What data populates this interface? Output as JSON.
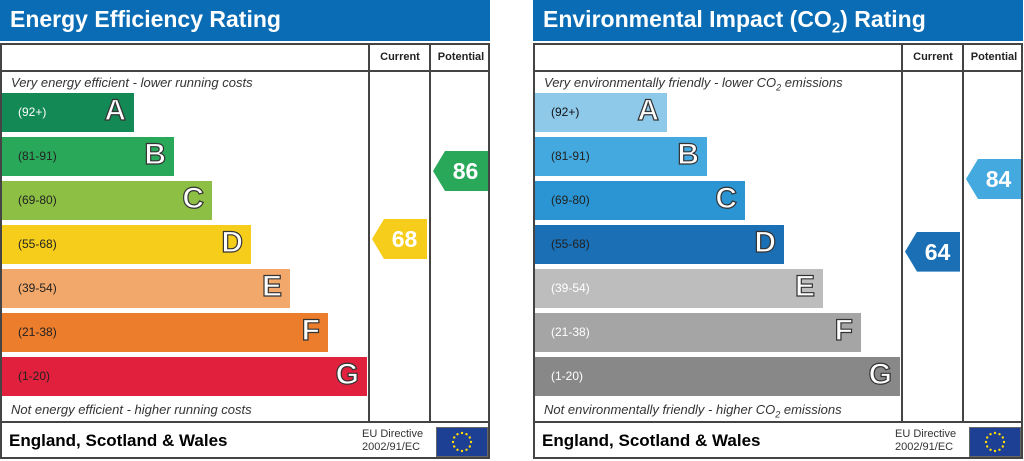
{
  "chart_data": [
    {
      "type": "table",
      "title": "Energy Efficiency Rating",
      "columns": [
        "Current",
        "Potential"
      ],
      "top_note": "Very energy efficient - lower running costs",
      "bottom_note": "Not energy efficient - higher running costs",
      "bands": [
        {
          "letter": "A",
          "range": "(92+)",
          "color": "#138a55",
          "text": "#fff"
        },
        {
          "letter": "B",
          "range": "(81-91)",
          "color": "#2aa85a",
          "text": "#222"
        },
        {
          "letter": "C",
          "range": "(69-80)",
          "color": "#8cbf44",
          "text": "#222"
        },
        {
          "letter": "D",
          "range": "(55-68)",
          "color": "#f6cd1b",
          "text": "#222"
        },
        {
          "letter": "E",
          "range": "(39-54)",
          "color": "#f2a86a",
          "text": "#222"
        },
        {
          "letter": "F",
          "range": "(21-38)",
          "color": "#ec7d2c",
          "text": "#222"
        },
        {
          "letter": "G",
          "range": "(1-20)",
          "color": "#e1203d",
          "text": "#222"
        }
      ],
      "current": {
        "value": 68,
        "band": "D",
        "color": "#f6cd1b"
      },
      "potential": {
        "value": 86,
        "band": "B",
        "color": "#2aa85a"
      },
      "footer": {
        "country": "England, Scotland & Wales",
        "directive_line1": "EU Directive",
        "directive_line2": "2002/91/EC"
      }
    },
    {
      "type": "table",
      "title": "Environmental Impact (CO2) Rating",
      "columns": [
        "Current",
        "Potential"
      ],
      "top_note": "Very environmentally friendly - lower CO2 emissions",
      "bottom_note": "Not environmentally friendly - higher CO2 emissions",
      "bands": [
        {
          "letter": "A",
          "range": "(92+)",
          "color": "#8ec9ea",
          "text": "#111"
        },
        {
          "letter": "B",
          "range": "(81-91)",
          "color": "#44a9df",
          "text": "#222"
        },
        {
          "letter": "C",
          "range": "(69-80)",
          "color": "#2a95d2",
          "text": "#222"
        },
        {
          "letter": "D",
          "range": "(55-68)",
          "color": "#1a6fb5",
          "text": "#222"
        },
        {
          "letter": "E",
          "range": "(39-54)",
          "color": "#bdbdbd",
          "text": "#fff"
        },
        {
          "letter": "F",
          "range": "(21-38)",
          "color": "#a5a5a5",
          "text": "#fff"
        },
        {
          "letter": "G",
          "range": "(1-20)",
          "color": "#888888",
          "text": "#fff"
        }
      ],
      "current": {
        "value": 64,
        "band": "D",
        "color": "#1a6fb5"
      },
      "potential": {
        "value": 84,
        "band": "B",
        "color": "#44a9df"
      },
      "footer": {
        "country": "England, Scotland & Wales",
        "directive_line1": "EU Directive",
        "directive_line2": "2002/91/EC"
      }
    }
  ]
}
